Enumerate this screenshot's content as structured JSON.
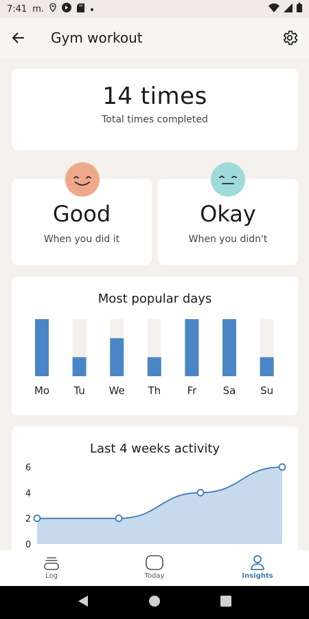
{
  "status_bar": {
    "time": "7:41",
    "carrier": "m."
  },
  "app_bar": {
    "title": "Gym workout",
    "back_icon": "arrow-left-icon",
    "settings_icon": "gear-icon"
  },
  "summary": {
    "total_value": "14 times",
    "total_label": "Total times completed"
  },
  "moods": [
    {
      "value": "Good",
      "label": "When you did it",
      "face_color": "#f0a88a",
      "face": "smile"
    },
    {
      "value": "Okay",
      "label": "When you didn't",
      "face_color": "#9ddbd9",
      "face": "neutral"
    }
  ],
  "popular_days": {
    "title": "Most popular days"
  },
  "activity": {
    "title": "Last 4 weeks activity"
  },
  "chart_data": [
    {
      "type": "bar",
      "title": "Most popular days",
      "categories": [
        "Mo",
        "Tu",
        "We",
        "Th",
        "Fr",
        "Sa",
        "Su"
      ],
      "values": [
        3,
        1,
        2,
        1,
        3,
        3,
        1
      ],
      "ylim": [
        0,
        3
      ],
      "bar_color": "#4a86c5",
      "track_color": "#f4f1ec"
    },
    {
      "type": "area",
      "title": "Last 4 weeks activity",
      "x": [
        1,
        2,
        3,
        4
      ],
      "values": [
        2,
        2,
        4,
        6
      ],
      "yticks": [
        "6",
        "4",
        "2",
        "0"
      ],
      "ylim": [
        0,
        6
      ],
      "line_color": "#3f79b5",
      "fill_color": "#c7daed"
    }
  ],
  "bottom_nav": [
    {
      "label": "Log",
      "icon": "log-icon",
      "active": false
    },
    {
      "label": "Today",
      "icon": "today-icon",
      "active": false
    },
    {
      "label": "Insights",
      "icon": "insights-icon",
      "active": true
    }
  ]
}
